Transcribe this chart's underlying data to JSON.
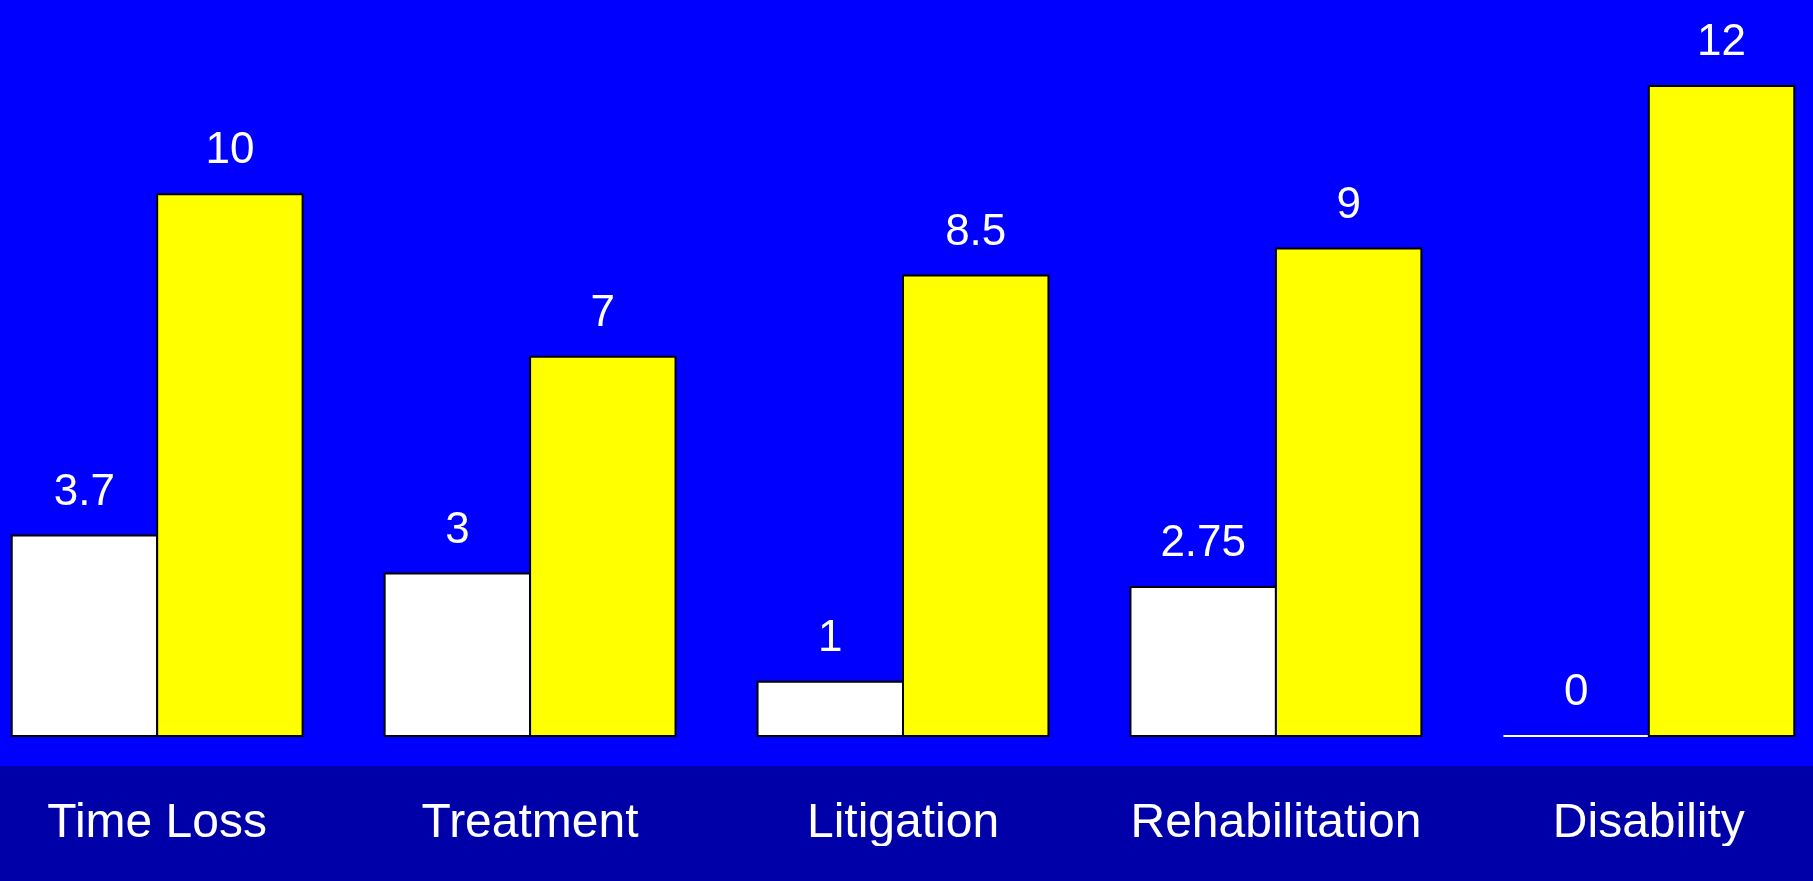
{
  "chart_data": {
    "type": "bar",
    "categories": [
      "Time Loss",
      "Treatment",
      "Litigation",
      "Rehabilitation",
      "Disability"
    ],
    "series": [
      {
        "color": "#ffffff",
        "values": [
          3.7,
          3,
          1,
          2.75,
          0
        ]
      },
      {
        "color": "#ffff00",
        "values": [
          10,
          7,
          8.5,
          9,
          12
        ]
      }
    ],
    "data_labels": true,
    "grid": false,
    "legend": false
  }
}
